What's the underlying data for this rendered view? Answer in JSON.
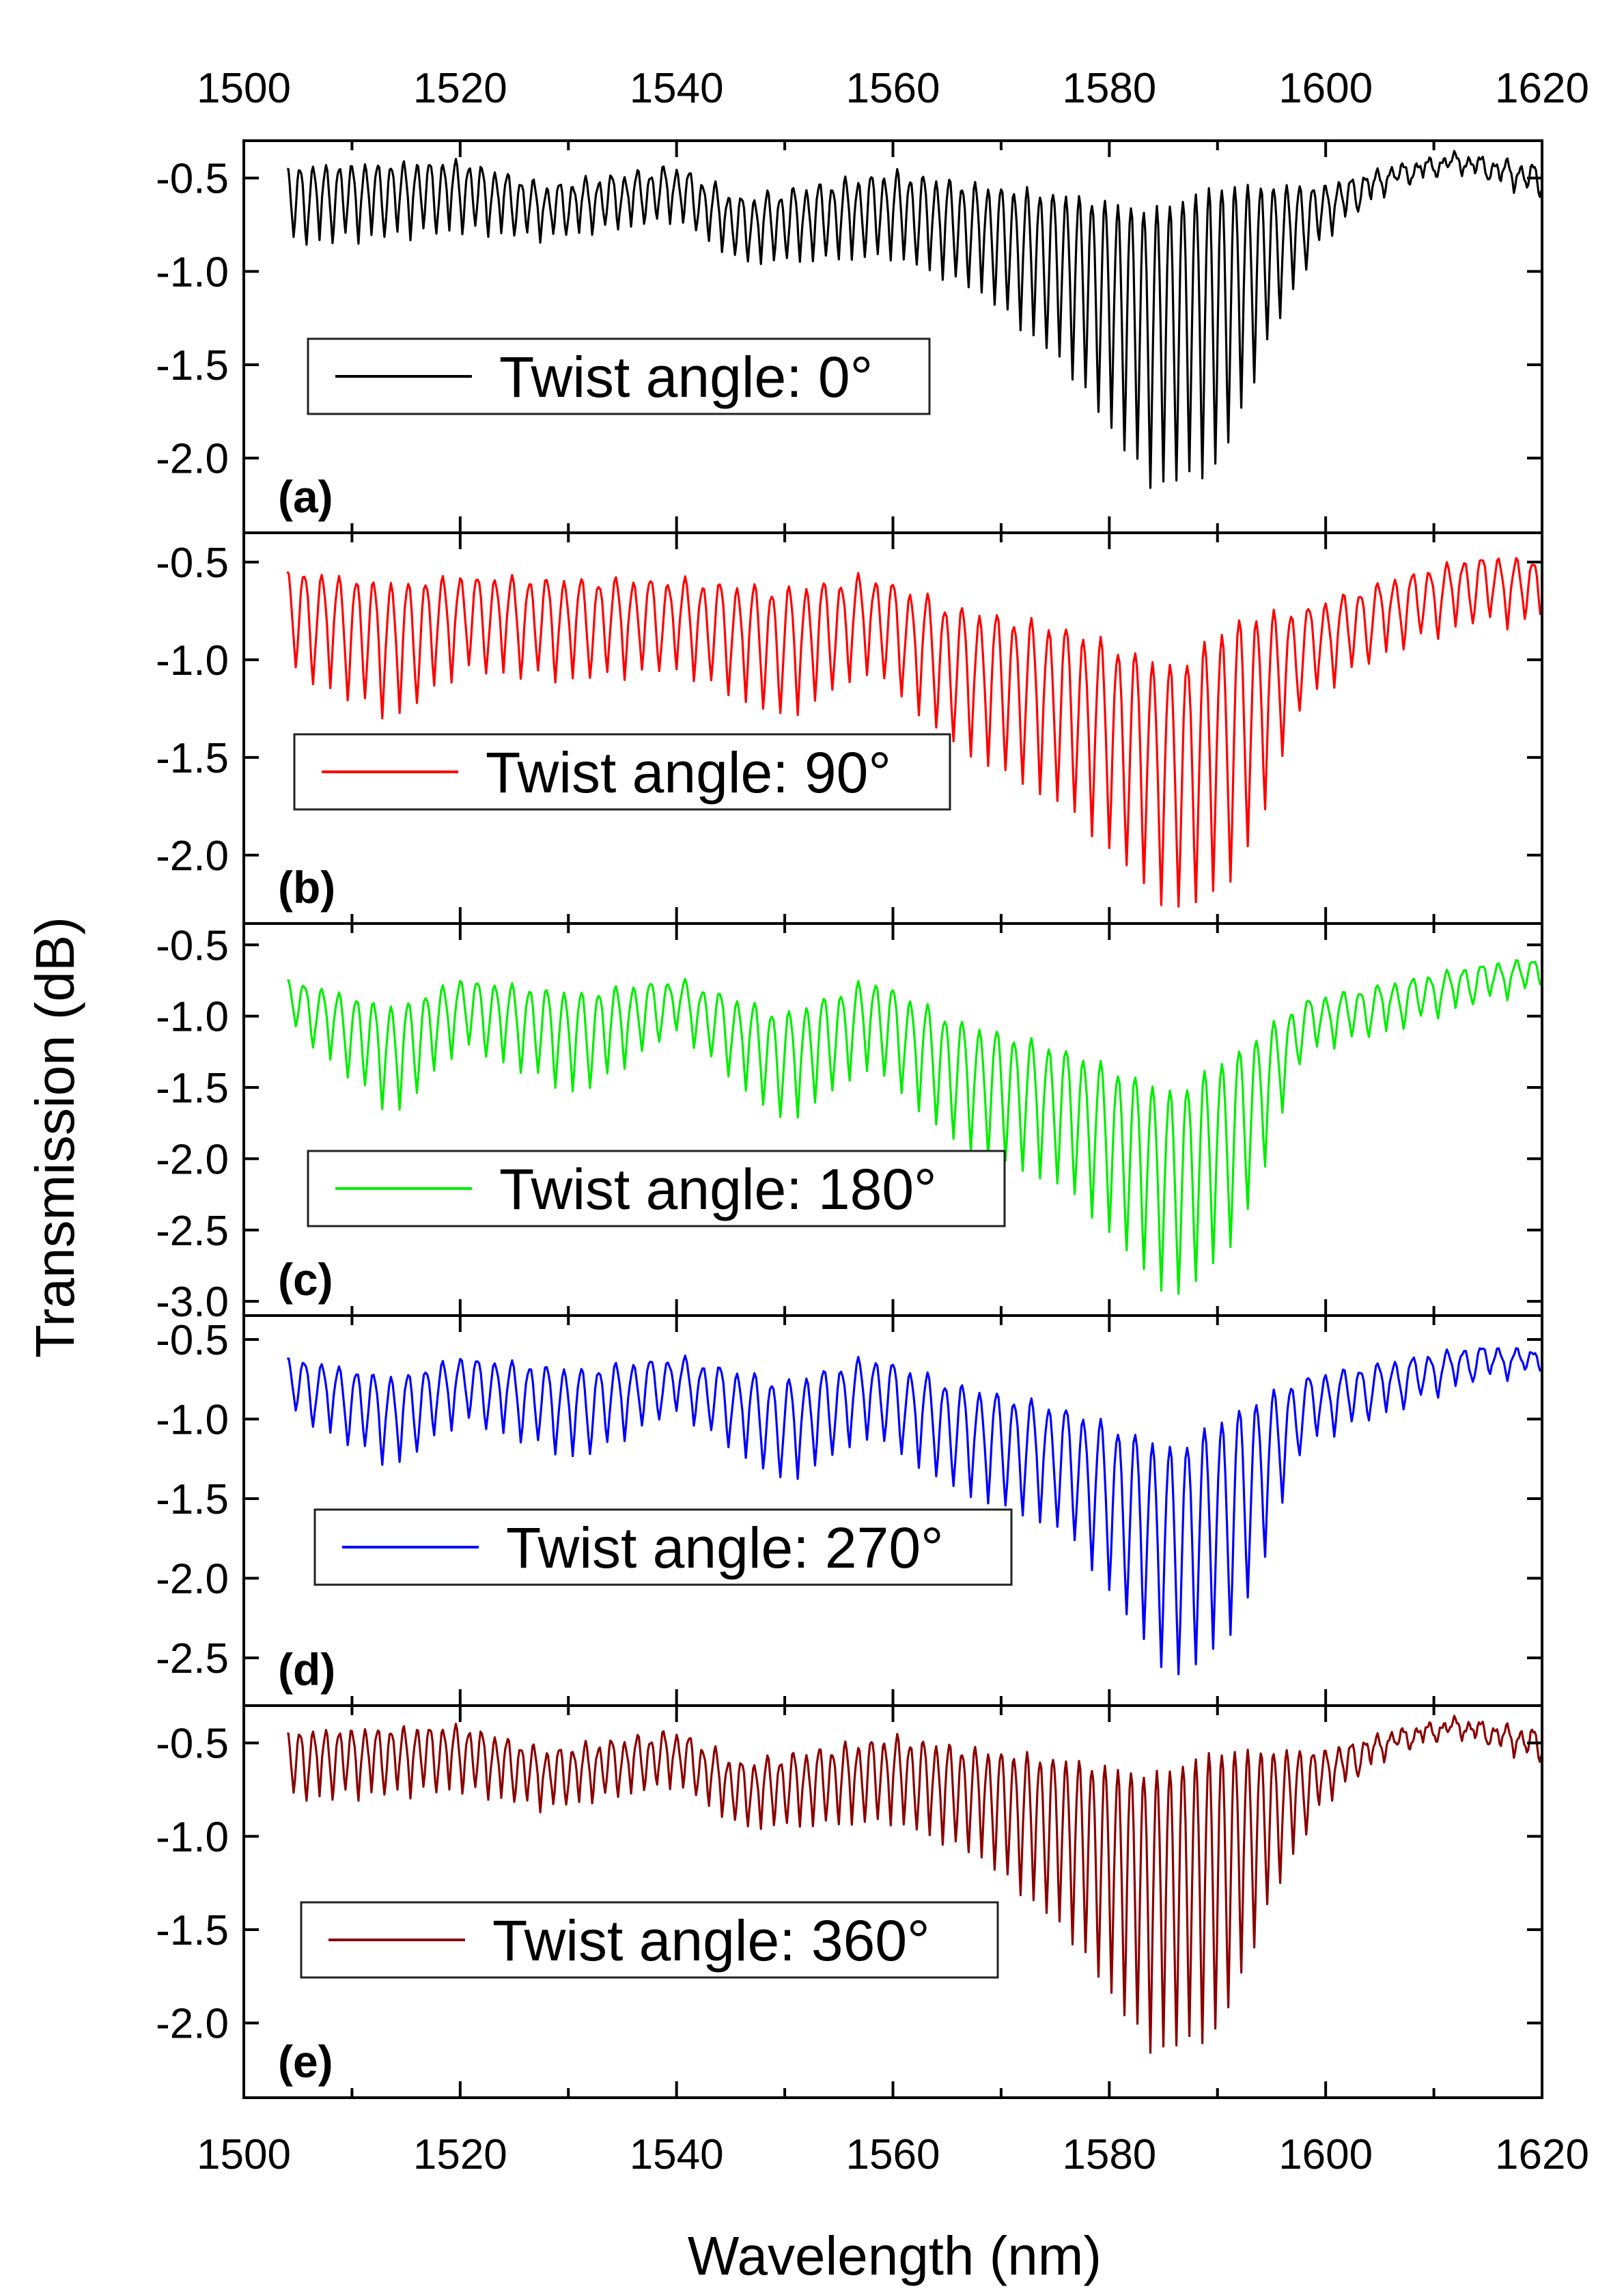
{
  "chart_data": {
    "type": "line",
    "xlabel": "Wavelength (nm)",
    "ylabel": "Transmission (dB)",
    "xlim": [
      1500,
      1620
    ],
    "xticks": [
      1500,
      1520,
      1540,
      1560,
      1580,
      1600,
      1620
    ],
    "top_xticks": [
      1500,
      1520,
      1540,
      1560,
      1580,
      1600,
      1620
    ],
    "grid": false,
    "panels": [
      {
        "label": "(a)",
        "series_name": "Twist angle: 0°",
        "color": "#000000",
        "ylim": [
          -2.4,
          -0.3
        ],
        "yticks": [
          -0.5,
          -1.0,
          -1.5,
          -2.0
        ],
        "ytick_labels": [
          "-0.5",
          "-1.0",
          "-1.5",
          "-2.0"
        ],
        "legend_position": "left-middle",
        "x_start": 1504,
        "envelope": {
          "x": [
            1504,
            1520,
            1528,
            1540,
            1546,
            1560,
            1568,
            1576,
            1584,
            1590,
            1596,
            1600,
            1606,
            1612,
            1620
          ],
          "y_upper": [
            -0.45,
            -0.42,
            -0.55,
            -0.45,
            -0.62,
            -0.48,
            -0.55,
            -0.6,
            -0.68,
            -0.55,
            -0.55,
            -0.55,
            -0.45,
            -0.38,
            -0.45
          ],
          "y_lower": [
            -0.85,
            -0.78,
            -0.82,
            -0.72,
            -0.95,
            -0.92,
            -1.1,
            -1.5,
            -2.15,
            -2.05,
            -1.2,
            -0.8,
            -0.55,
            -0.45,
            -0.6
          ]
        },
        "fringe_period_nm": 1.2
      },
      {
        "label": "(b)",
        "series_name": "Twist angle: 90°",
        "color": "#ff0000",
        "ylim": [
          -2.35,
          -0.35
        ],
        "yticks": [
          -0.5,
          -1.0,
          -1.5,
          -2.0
        ],
        "ytick_labels": [
          "-0.5",
          "-1.0",
          "-1.5",
          "-2.0"
        ],
        "legend_position": "left-middle",
        "x_start": 1504,
        "envelope": {
          "x": [
            1504,
            1514,
            1520,
            1530,
            1540,
            1550,
            1558,
            1566,
            1576,
            1586,
            1592,
            1598,
            1606,
            1614,
            1620
          ],
          "y_upper": [
            -0.55,
            -0.62,
            -0.58,
            -0.6,
            -0.6,
            -0.65,
            -0.58,
            -0.75,
            -0.85,
            -1.05,
            -0.8,
            -0.75,
            -0.6,
            -0.48,
            -0.5
          ],
          "y_lower": [
            -1.05,
            -1.3,
            -1.05,
            -1.1,
            -1.05,
            -1.3,
            -1.05,
            -1.45,
            -1.75,
            -2.3,
            -2.1,
            -1.2,
            -0.95,
            -0.8,
            -0.82
          ]
        },
        "fringe_period_nm": 1.6
      },
      {
        "label": "(c)",
        "series_name": "Twist angle: 180°",
        "color": "#00ee00",
        "ylim": [
          -3.1,
          -0.35
        ],
        "yticks": [
          -0.5,
          -1.0,
          -1.5,
          -2.0,
          -2.5,
          -3.0
        ],
        "ytick_labels": [
          "-0.5",
          "-1.0",
          "-1.5",
          "-2.0",
          "-2.5",
          "-3.0"
        ],
        "legend_position": "left-lower",
        "x_start": 1504,
        "envelope": {
          "x": [
            1504,
            1514,
            1520,
            1531,
            1540,
            1550,
            1558,
            1566,
            1576,
            1586,
            1592,
            1598,
            1606,
            1614,
            1620
          ],
          "y_upper": [
            -0.75,
            -0.95,
            -0.75,
            -0.85,
            -0.75,
            -1.0,
            -0.75,
            -1.05,
            -1.25,
            -1.55,
            -1.25,
            -0.9,
            -0.78,
            -0.65,
            -0.6
          ],
          "y_lower": [
            -1.05,
            -1.7,
            -1.2,
            -1.55,
            -1.1,
            -1.75,
            -1.35,
            -1.9,
            -2.2,
            -3.0,
            -2.55,
            -1.25,
            -1.1,
            -0.9,
            -0.8
          ]
        },
        "fringe_period_nm": 1.6
      },
      {
        "label": "(d)",
        "series_name": "Twist angle: 270°",
        "color": "#0000ff",
        "ylim": [
          -2.8,
          -0.35
        ],
        "yticks": [
          -0.5,
          -1.0,
          -1.5,
          -2.0,
          -2.5
        ],
        "ytick_labels": [
          "-0.5",
          "-1.0",
          "-1.5",
          "-2.0",
          "-2.5"
        ],
        "legend_position": "left-lower",
        "x_start": 1504,
        "envelope": {
          "x": [
            1504,
            1514,
            1520,
            1531,
            1540,
            1550,
            1558,
            1566,
            1576,
            1586,
            1592,
            1598,
            1606,
            1614,
            1620
          ],
          "y_upper": [
            -0.62,
            -0.75,
            -0.62,
            -0.7,
            -0.62,
            -0.78,
            -0.62,
            -0.8,
            -0.95,
            -1.2,
            -0.95,
            -0.75,
            -0.65,
            -0.55,
            -0.58
          ],
          "y_lower": [
            -0.95,
            -1.3,
            -1.0,
            -1.25,
            -0.95,
            -1.4,
            -1.1,
            -1.45,
            -1.7,
            -2.65,
            -2.3,
            -1.15,
            -0.95,
            -0.75,
            -0.7
          ]
        },
        "fringe_period_nm": 1.6
      },
      {
        "label": "(e)",
        "series_name": "Twist angle: 360°",
        "color": "#8b0000",
        "ylim": [
          -2.4,
          -0.3
        ],
        "yticks": [
          -0.5,
          -1.0,
          -1.5,
          -2.0
        ],
        "ytick_labels": [
          "-0.5",
          "-1.0",
          "-1.5",
          "-2.0"
        ],
        "legend_position": "left-middle",
        "x_start": 1504,
        "envelope": {
          "x": [
            1504,
            1520,
            1528,
            1540,
            1546,
            1560,
            1568,
            1576,
            1584,
            1590,
            1596,
            1600,
            1606,
            1612,
            1620
          ],
          "y_upper": [
            -0.45,
            -0.42,
            -0.55,
            -0.45,
            -0.62,
            -0.48,
            -0.55,
            -0.6,
            -0.68,
            -0.55,
            -0.55,
            -0.55,
            -0.45,
            -0.38,
            -0.45
          ],
          "y_lower": [
            -0.8,
            -0.75,
            -0.85,
            -0.72,
            -0.95,
            -0.92,
            -1.1,
            -1.5,
            -2.15,
            -2.05,
            -1.2,
            -0.8,
            -0.55,
            -0.45,
            -0.6
          ]
        },
        "fringe_period_nm": 1.2
      }
    ]
  }
}
